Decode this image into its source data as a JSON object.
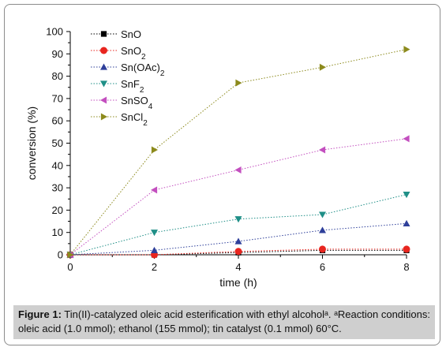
{
  "chart_data": {
    "type": "line",
    "xlabel": "time (h)",
    "ylabel": "conversion (%)",
    "xlim": [
      0,
      8
    ],
    "ylim": [
      0,
      100
    ],
    "xticks": [
      0,
      2,
      4,
      6,
      8
    ],
    "yticks": [
      0,
      10,
      20,
      30,
      40,
      50,
      60,
      70,
      80,
      90,
      100
    ],
    "x": [
      0,
      2,
      4,
      6,
      8
    ],
    "legend_position": "top-left",
    "grid": false,
    "series": [
      {
        "name": "SnO",
        "base": "SnO",
        "sub": "",
        "tail": "",
        "marker": "square",
        "color": "#000000",
        "values": [
          0,
          0,
          1,
          2,
          2
        ]
      },
      {
        "name": "SnO2",
        "base": "SnO",
        "sub": "2",
        "tail": "",
        "marker": "circle",
        "color": "#e8251f",
        "values": [
          0,
          0,
          1.5,
          2.5,
          2.5
        ]
      },
      {
        "name": "Sn(OAc)2",
        "base": "Sn(OAc)",
        "sub": "2",
        "tail": "",
        "marker": "triangle-up",
        "color": "#2e3f9a",
        "values": [
          0,
          2,
          6,
          11,
          14
        ]
      },
      {
        "name": "SnF2",
        "base": "SnF",
        "sub": "2",
        "tail": "",
        "marker": "triangle-down",
        "color": "#1f8f87",
        "values": [
          0,
          10,
          16,
          18,
          27
        ]
      },
      {
        "name": "SnSO4",
        "base": "SnSO",
        "sub": "4",
        "tail": "",
        "marker": "triangle-left",
        "color": "#c34fbf",
        "values": [
          0,
          29,
          38,
          47,
          52
        ]
      },
      {
        "name": "SnCl2",
        "base": "SnCl",
        "sub": "2",
        "tail": "",
        "marker": "triangle-right",
        "color": "#8c8a1c",
        "values": [
          0,
          47,
          77,
          84,
          92
        ]
      }
    ]
  },
  "caption": {
    "label": "Figure 1:",
    "text": " Tin(II)-catalyzed oleic acid esterification with ethyl alcoholᵃ. ᵃReaction conditions: oleic acid (1.0 mmol); ethanol (155 mmol); tin catalyst  (0.1 mmol) 60°C."
  }
}
